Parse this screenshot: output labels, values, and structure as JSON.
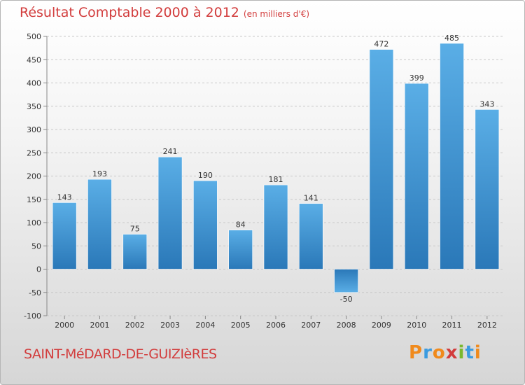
{
  "chart_data": {
    "type": "bar",
    "title": "Résultat Comptable 2000 à 2012",
    "subtitle": "(en milliers d'€)",
    "categories": [
      "2000",
      "2001",
      "2002",
      "2003",
      "2004",
      "2005",
      "2006",
      "2007",
      "2008",
      "2009",
      "2010",
      "2011",
      "2012"
    ],
    "values": [
      143,
      193,
      75,
      241,
      190,
      84,
      181,
      141,
      -50,
      472,
      399,
      485,
      343
    ],
    "ylim": [
      -100,
      500
    ],
    "yticks": [
      -100,
      -50,
      0,
      50,
      100,
      150,
      200,
      250,
      300,
      350,
      400,
      450,
      500
    ],
    "grid": true,
    "bar_color_top": "#5aaee6",
    "bar_color_bottom": "#2a78b8"
  },
  "footer": {
    "location": "SAINT-MéDARD-DE-GUIZIèRES",
    "brand_letters": [
      "P",
      "r",
      "o",
      "x",
      "i",
      "t",
      "i"
    ],
    "brand_colors": [
      "#f08a1c",
      "#3a9be0",
      "#f08a1c",
      "#d23c3c",
      "#7ab82e",
      "#3a9be0",
      "#f08a1c"
    ]
  },
  "colors": {
    "accent": "#d23c3c"
  }
}
